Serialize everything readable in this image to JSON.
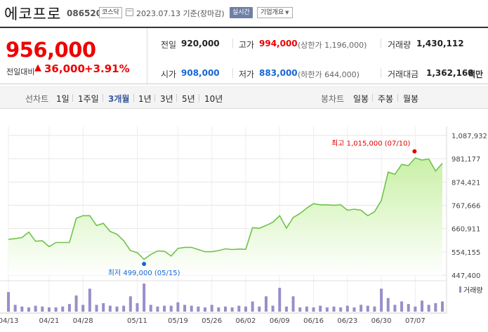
{
  "header": {
    "stock_name": "에코프로",
    "stock_code": "086520",
    "market": "코스닥",
    "date": "2023.07.13 기준(장마감)",
    "realtime_label": "실시간",
    "company_info_label": "기업개요"
  },
  "summary": {
    "price": "956,000",
    "change_label": "전일대비",
    "change_arrow": "▲",
    "change_amount": "36,000",
    "change_percent": "+3.91%",
    "prev_close_label": "전일",
    "prev_close": "920,000",
    "open_label": "시가",
    "open": "908,000",
    "high_label": "고가",
    "high": "994,000",
    "upper_limit": "(상한가 1,196,000)",
    "low_label": "저가",
    "low": "883,000",
    "lower_limit": "(하한가 644,000)",
    "volume_label": "거래량",
    "volume": "1,430,112",
    "amount_label": "거래대금",
    "amount": "1,362,168",
    "amount_unit": "백만"
  },
  "tabs": {
    "line_chart_label": "선차트",
    "periods": [
      "1일",
      "1주일",
      "3개월",
      "1년",
      "3년",
      "5년",
      "10년"
    ],
    "active_period": "3개월",
    "candle_chart_label": "봉차트",
    "candle_periods": [
      "일봉",
      "주봉",
      "월봉"
    ]
  },
  "chart_data": {
    "type": "area",
    "y_ticks": [
      "1,087,932",
      "981,177",
      "874,421",
      "767,666",
      "660,911",
      "554,155",
      "447,400"
    ],
    "y_tick_values": [
      1087932,
      981177,
      874421,
      767666,
      660911,
      554155,
      447400
    ],
    "ylim": [
      447400,
      1087932
    ],
    "x_ticks": [
      "04/13",
      "04/21",
      "04/28",
      "05/11",
      "05/19",
      "05/26",
      "06/02",
      "06/09",
      "06/16",
      "06/23",
      "06/30",
      "07/07"
    ],
    "x_tick_index": [
      0,
      6,
      11,
      19,
      25,
      30,
      35,
      40,
      45,
      50,
      55,
      60
    ],
    "series": [
      {
        "values": [
          612000,
          615000,
          620000,
          645000,
          603000,
          605000,
          578000,
          597000,
          597000,
          597000,
          708000,
          720000,
          720000,
          675000,
          685000,
          648000,
          635000,
          605000,
          560000,
          550000,
          520000,
          542000,
          558000,
          557000,
          535000,
          570000,
          575000,
          575000,
          565000,
          555000,
          555000,
          560000,
          568000,
          565000,
          567000,
          566000,
          665000,
          662000,
          675000,
          690000,
          720000,
          663000,
          712000,
          730000,
          755000,
          775000,
          770000,
          770000,
          768000,
          770000,
          745000,
          750000,
          745000,
          720000,
          738000,
          790000,
          920000,
          910000,
          955000,
          950000,
          985000,
          975000,
          980000,
          925000,
          960000
        ]
      }
    ],
    "volume": [
      23,
      8,
      6,
      5,
      7,
      6,
      5,
      5,
      6,
      9,
      19,
      8,
      27,
      8,
      10,
      7,
      6,
      7,
      18,
      10,
      33,
      8,
      6,
      7,
      7,
      11,
      8,
      7,
      6,
      5,
      8,
      5,
      6,
      5,
      7,
      6,
      12,
      6,
      18,
      7,
      28,
      6,
      18,
      5,
      6,
      5,
      7,
      5,
      6,
      5,
      7,
      5,
      8,
      7,
      6,
      27,
      16,
      8,
      12,
      9,
      6,
      13,
      8,
      10,
      12
    ],
    "max_label": "최고 1,015,000 (07/10)",
    "max_value": 1015000,
    "max_index": 60,
    "min_label": "최저 499,000 (05/15)",
    "min_value": 499000,
    "min_index": 20,
    "volume_legend": "거래량",
    "colors": {
      "line": "#6ec34a",
      "fill_top": "#c9f0a6",
      "fill_bottom": "#ffffff",
      "volume": "#9a8ec8",
      "max_marker": "#e00000",
      "min_marker": "#1767d3"
    },
    "grid": true
  }
}
